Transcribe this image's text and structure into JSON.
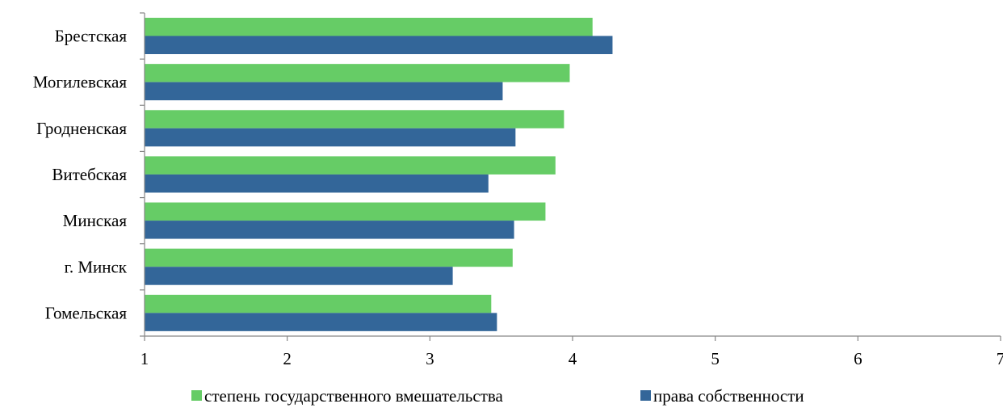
{
  "chart_data": {
    "type": "bar",
    "orientation": "horizontal",
    "categories": [
      "Брестская",
      "Могилевская",
      "Гродненская",
      "Витебская",
      "Минская",
      "г. Минск",
      "Гомельская"
    ],
    "series": [
      {
        "name": "степень государственного вмешательства",
        "color": "#66CC66",
        "values": [
          4.14,
          3.98,
          3.94,
          3.88,
          3.81,
          3.58,
          3.43
        ]
      },
      {
        "name": "права собственности",
        "color": "#336699",
        "values": [
          4.28,
          3.51,
          3.6,
          3.41,
          3.59,
          3.16,
          3.47
        ]
      }
    ],
    "title": "",
    "xlabel": "",
    "ylabel": "",
    "xlim": [
      1,
      7
    ],
    "x_ticks": [
      "1",
      "2",
      "3",
      "4",
      "5",
      "6",
      "7"
    ],
    "grid": false,
    "legend_position": "bottom"
  }
}
